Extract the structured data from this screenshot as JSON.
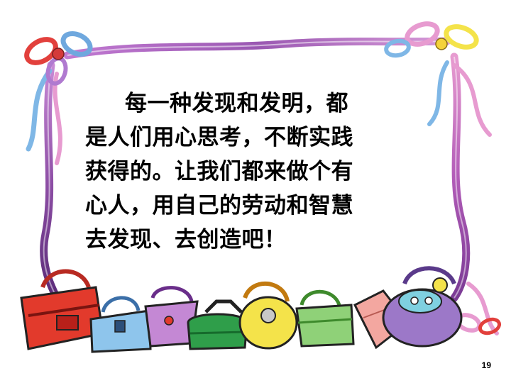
{
  "slide": {
    "text_lines": [
      "每一种发现和发明，都",
      "是人们用心思考，不断实践",
      "获得的。让我们都来做个有",
      "心人，用自己的劳动和智慧",
      "去发现、去创造吧！"
    ],
    "page_number": "19"
  },
  "decoration": {
    "frame": "ribbon-frame",
    "bows": [
      "red-bow",
      "blue-bow",
      "yellow-bow"
    ],
    "bags": [
      "red-bag",
      "blue-bag",
      "purple-bag",
      "green-bag",
      "yellow-bag",
      "green-purse",
      "pink-purse",
      "purple-bag-with-eyes"
    ],
    "colors": {
      "ribbon_purple": "#8e4fa6",
      "ribbon_pink": "#e79bd0",
      "ribbon_blue": "#7fb7e6",
      "bow_red": "#e2403c",
      "bow_yellow": "#f4e34a"
    }
  }
}
